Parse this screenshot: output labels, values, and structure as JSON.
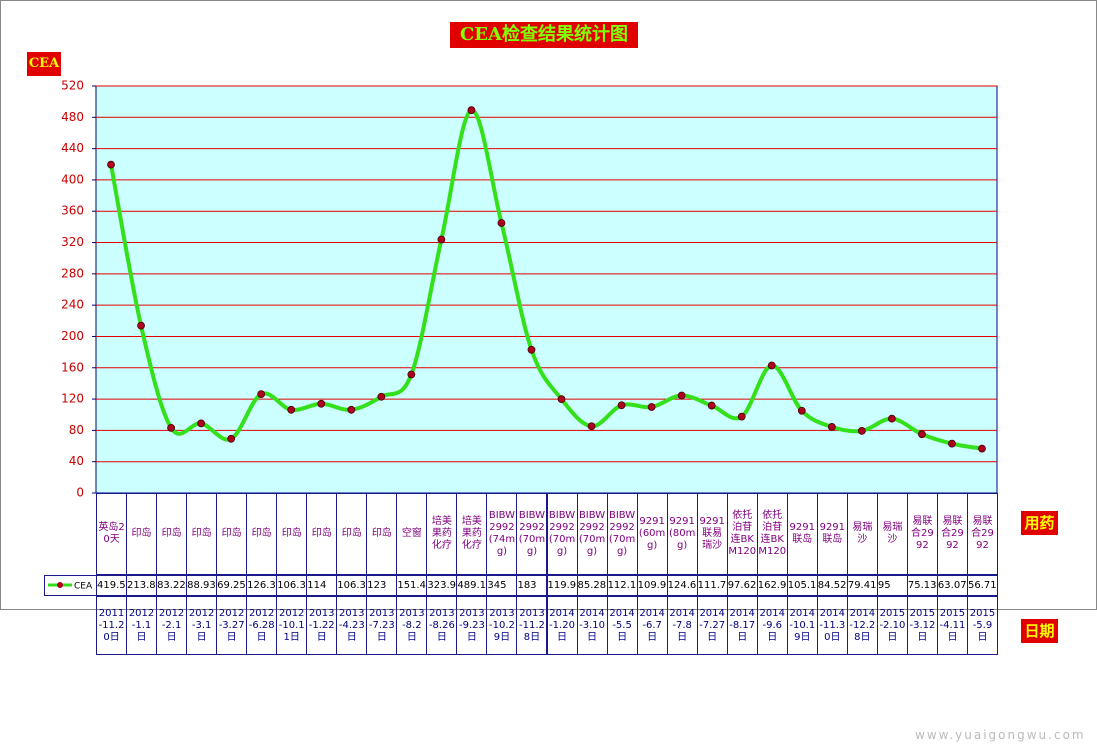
{
  "chart_data": {
    "type": "line",
    "title": "CEA检查结果统计图",
    "y_label": "CEA",
    "drug_label": "用药",
    "x_label": "日期",
    "watermark": "www.yuaigongwu.com",
    "categories": [
      "2011-11.20日",
      "2012-1.1日",
      "2012-2.1日",
      "2012-3.1日",
      "2012-3.27日",
      "2012-6.28日",
      "2012-10.11日",
      "2013-1.22日",
      "2013-4.23日",
      "2013-7.23日",
      "2013-8.2日",
      "2013-8.26日",
      "2013-9.23日",
      "2013-10.29日",
      "2013-11.28日",
      "2014-1.20日",
      "2014-3.10日",
      "2014-5.5日",
      "2014-6.7日",
      "2014-7.8日",
      "2014-7.27日",
      "2014-8.17日",
      "2014-9.6日",
      "2014-10.19日",
      "2014-11.30日",
      "2014-12.28日",
      "2015-2.10日",
      "2015-3.12日",
      "2015-4.11日",
      "2015-5.9日"
    ],
    "drugs": [
      "英岛20天",
      "印岛",
      "印岛",
      "印岛",
      "印岛",
      "印岛",
      "印岛",
      "印岛",
      "印岛",
      "印岛",
      "空窗",
      "培美果药化疗",
      "培美果药化疗",
      "BIBW2992(74mg)",
      "BIBW2992(70mg)",
      "BIBW2992(70mg)",
      "BIBW2992(70mg)",
      "BIBW2992(70mg)",
      "9291(60mg)",
      "9291(80mg)",
      "9291联易瑞沙",
      "依托泊苷连BKM120",
      "依托泊苷连BKM120",
      "9291联岛",
      "9291联岛",
      "易瑞沙",
      "易瑞沙",
      "易联合2992",
      "易联合2992",
      "易联合2992"
    ],
    "series": [
      {
        "name": "CEA",
        "color": "#33e01a",
        "values": [
          419.5,
          213.8,
          83.22,
          88.93,
          69.25,
          126.3,
          106.3,
          114,
          106.3,
          123,
          151.4,
          323.9,
          489.1,
          345,
          183,
          119.9,
          85.28,
          112.1,
          109.9,
          124.6,
          111.7,
          97.62,
          162.9,
          105.1,
          84.52,
          79.41,
          95,
          75.13,
          63.07,
          56.71
        ]
      }
    ],
    "ylim": [
      0,
      520
    ],
    "yticks": [
      0,
      40,
      80,
      120,
      160,
      200,
      240,
      280,
      320,
      360,
      400,
      440,
      480,
      520
    ],
    "grid": true
  }
}
